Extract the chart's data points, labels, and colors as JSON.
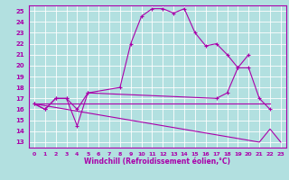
{
  "title": "",
  "xlabel": "Windchill (Refroidissement éolien,°C)",
  "xlim": [
    -0.5,
    23.5
  ],
  "ylim": [
    12.5,
    25.5
  ],
  "xticks": [
    0,
    1,
    2,
    3,
    4,
    5,
    6,
    7,
    8,
    9,
    10,
    11,
    12,
    13,
    14,
    15,
    16,
    17,
    18,
    19,
    20,
    21,
    22,
    23
  ],
  "yticks": [
    13,
    14,
    15,
    16,
    17,
    18,
    19,
    20,
    21,
    22,
    23,
    24,
    25
  ],
  "bg_color": "#b2e0e0",
  "grid_color": "#ffffff",
  "line_color": "#aa00aa",
  "line1_x": [
    0,
    1,
    2,
    3,
    4,
    5,
    8,
    9,
    10,
    11,
    12,
    13,
    14,
    15,
    16,
    17,
    18,
    19,
    20
  ],
  "line1_y": [
    16.5,
    16.0,
    17.0,
    17.0,
    14.5,
    17.5,
    18.0,
    22.0,
    24.5,
    25.2,
    25.2,
    24.8,
    25.2,
    23.0,
    21.8,
    22.0,
    21.0,
    19.8,
    21.0
  ],
  "line2_x": [
    0,
    1,
    2,
    3,
    4,
    5,
    17,
    18,
    19,
    20,
    21,
    22
  ],
  "line2_y": [
    16.5,
    16.0,
    17.0,
    17.0,
    16.0,
    17.5,
    17.0,
    17.5,
    19.8,
    19.8,
    17.0,
    16.0
  ],
  "line3_x": [
    0,
    22
  ],
  "line3_y": [
    16.5,
    16.5
  ],
  "line4_x": [
    0,
    21,
    22,
    23
  ],
  "line4_y": [
    16.5,
    13.0,
    14.2,
    13.0
  ]
}
